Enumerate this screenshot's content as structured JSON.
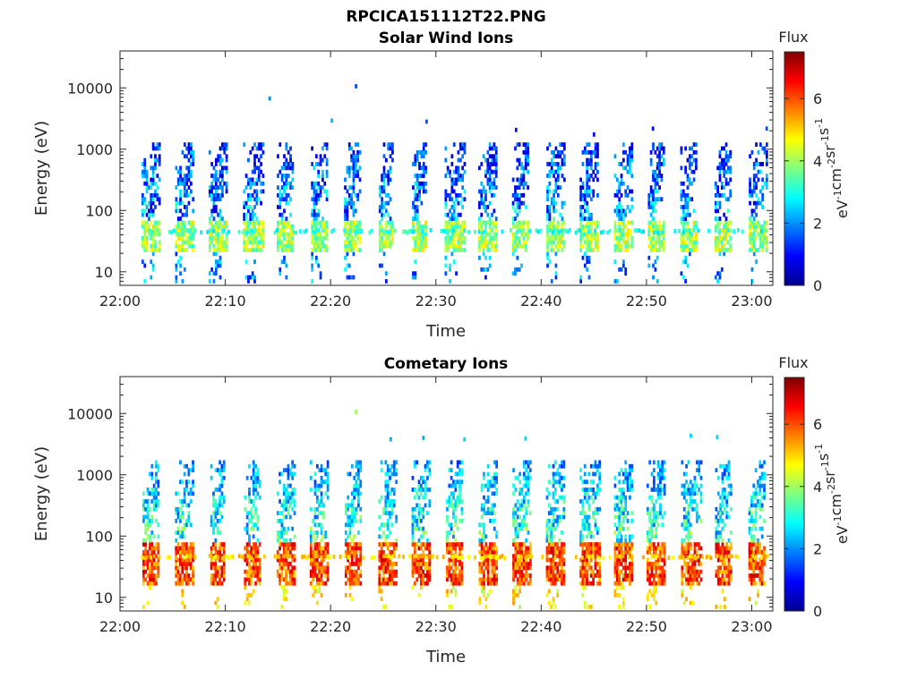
{
  "figure": {
    "title": "RPCICA151112T22.PNG"
  },
  "chart_data": [
    {
      "type": "heatmap",
      "title": "Solar Wind Ions",
      "xlabel": "Time",
      "ylabel": "Energy (eV)",
      "x_ticks": [
        "22:00",
        "22:10",
        "22:20",
        "22:30",
        "22:40",
        "22:50",
        "23:00"
      ],
      "y_ticks": [
        "10",
        "100",
        "1000",
        "10000"
      ],
      "y_scale": "log",
      "ylim": [
        6,
        40000
      ],
      "xlim_minutes": [
        0,
        62
      ],
      "colorbar": {
        "label": "Flux",
        "unit_parts": [
          "eV",
          "-1",
          "cm",
          "-2",
          "sr",
          "-1",
          "s",
          "-1"
        ],
        "ticks": [
          "0",
          "2",
          "4",
          "6"
        ],
        "range": [
          0,
          7.5
        ],
        "colormap": "jet"
      },
      "grid": false,
      "cadence_minutes": 3.2,
      "burst_start_minutes": 2,
      "cell_values": {
        "core_energy_ev": [
          20,
          60
        ],
        "core_flux": [
          3,
          5
        ],
        "upper_energy_ev": [
          60,
          1200
        ],
        "upper_flux": [
          0.5,
          3.5
        ],
        "lower_energy_ev": [
          6,
          20
        ],
        "lower_flux": [
          1,
          3
        ]
      },
      "isolated_points": [
        {
          "time_min": 14.1,
          "energy_ev": 6200,
          "flux": 2.0
        },
        {
          "time_min": 22.3,
          "energy_ev": 9800,
          "flux": 1.5
        },
        {
          "time_min": 20.0,
          "energy_ev": 2700,
          "flux": 2.3
        },
        {
          "time_min": 29.0,
          "energy_ev": 2600,
          "flux": 1.5
        },
        {
          "time_min": 37.5,
          "energy_ev": 1900,
          "flux": 1.0
        },
        {
          "time_min": 44.9,
          "energy_ev": 1600,
          "flux": 1.0
        },
        {
          "time_min": 50.5,
          "energy_ev": 2000,
          "flux": 1.0
        },
        {
          "time_min": 61.3,
          "energy_ev": 2000,
          "flux": 1.5
        }
      ]
    },
    {
      "type": "heatmap",
      "title": "Cometary Ions",
      "xlabel": "Time",
      "ylabel": "Energy (eV)",
      "x_ticks": [
        "22:00",
        "22:10",
        "22:20",
        "22:30",
        "22:40",
        "22:50",
        "23:00"
      ],
      "y_ticks": [
        "10",
        "100",
        "1000",
        "10000"
      ],
      "y_scale": "log",
      "ylim": [
        6,
        40000
      ],
      "xlim_minutes": [
        0,
        62
      ],
      "colorbar": {
        "label": "Flux",
        "unit_parts": [
          "eV",
          "-1",
          "cm",
          "-2",
          "sr",
          "-1",
          "s",
          "-1"
        ],
        "ticks": [
          "0",
          "2",
          "4",
          "6"
        ],
        "range": [
          0,
          7.5
        ],
        "colormap": "jet"
      },
      "grid": false,
      "cadence_minutes": 3.2,
      "burst_start_minutes": 2,
      "cell_values": {
        "core_energy_ev": [
          15,
          70
        ],
        "core_flux": [
          5,
          7
        ],
        "upper_energy_ev": [
          70,
          1500
        ],
        "upper_flux": [
          1.8,
          4.5
        ],
        "lower_energy_ev": [
          6,
          15
        ],
        "lower_flux": [
          4,
          5.5
        ]
      },
      "isolated_points": [
        {
          "time_min": 22.3,
          "energy_ev": 9800,
          "flux": 4.0
        },
        {
          "time_min": 25.6,
          "energy_ev": 3500,
          "flux": 2.2
        },
        {
          "time_min": 28.7,
          "energy_ev": 3700,
          "flux": 2.2
        },
        {
          "time_min": 32.6,
          "energy_ev": 3500,
          "flux": 2.5
        },
        {
          "time_min": 38.4,
          "energy_ev": 3600,
          "flux": 2.5
        },
        {
          "time_min": 54.1,
          "energy_ev": 4000,
          "flux": 2.5
        },
        {
          "time_min": 56.6,
          "energy_ev": 3800,
          "flux": 2.5
        }
      ]
    }
  ]
}
